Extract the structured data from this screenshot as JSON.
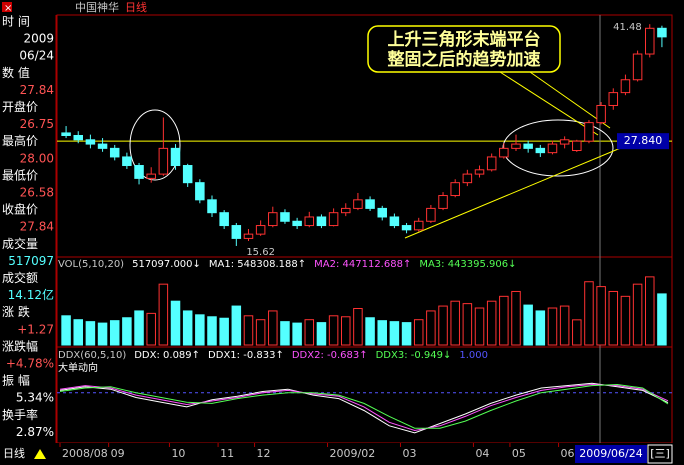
{
  "header": {
    "stock": "中国神华",
    "period": "日线"
  },
  "info_lines": [
    {
      "text": "时  间",
      "color": "#ffffff",
      "align": "start"
    },
    {
      "text": "2009",
      "color": "#ffffff",
      "align": "end"
    },
    {
      "text": "06/24",
      "color": "#ffffff",
      "align": "end"
    },
    {
      "text": "数  值",
      "color": "#ffffff",
      "align": "start"
    },
    {
      "text": "27.84",
      "color": "#ff5454",
      "align": "end"
    },
    {
      "text": "开盘价",
      "color": "#ffffff",
      "align": "start"
    },
    {
      "text": "26.75",
      "color": "#ff5454",
      "align": "end"
    },
    {
      "text": "最高价",
      "color": "#ffffff",
      "align": "start"
    },
    {
      "text": "28.00",
      "color": "#ff5454",
      "align": "end"
    },
    {
      "text": "最低价",
      "color": "#ffffff",
      "align": "start"
    },
    {
      "text": "26.58",
      "color": "#ff5454",
      "align": "end"
    },
    {
      "text": "收盘价",
      "color": "#ffffff",
      "align": "start"
    },
    {
      "text": "27.84",
      "color": "#ff5454",
      "align": "end"
    },
    {
      "text": "成交量",
      "color": "#ffffff",
      "align": "start"
    },
    {
      "text": "517097",
      "color": "#54ffff",
      "align": "end"
    },
    {
      "text": "成交额",
      "color": "#ffffff",
      "align": "start"
    },
    {
      "text": "14.12亿",
      "color": "#54ffff",
      "align": "end"
    },
    {
      "text": "涨  跌",
      "color": "#ffffff",
      "align": "start"
    },
    {
      "text": "+1.27",
      "color": "#ff5454",
      "align": "end"
    },
    {
      "text": "涨跌幅",
      "color": "#ffffff",
      "align": "start"
    },
    {
      "text": "+4.78%",
      "color": "#ff5454",
      "align": "end"
    },
    {
      "text": "振  幅",
      "color": "#ffffff",
      "align": "start"
    },
    {
      "text": "5.34%",
      "color": "#ffffff",
      "align": "end"
    },
    {
      "text": "换手率",
      "color": "#ffffff",
      "align": "start"
    },
    {
      "text": "2.87%",
      "color": "#ffffff",
      "align": "end"
    }
  ],
  "chart_data": {
    "type": "candlestick",
    "up_color": "#ff3232",
    "down_color": "#54ffff",
    "categories": [
      "2008/08",
      null,
      null,
      null,
      "09",
      null,
      null,
      null,
      null,
      "10",
      null,
      null,
      null,
      "11",
      null,
      null,
      "12",
      null,
      null,
      null,
      null,
      null,
      "2009/02",
      null,
      null,
      null,
      null,
      null,
      "03",
      null,
      null,
      null,
      null,
      null,
      "04",
      null,
      null,
      "05",
      null,
      null,
      null,
      "06",
      null,
      null,
      null,
      null,
      null,
      null,
      null,
      null
    ],
    "candles": [
      [
        28.8,
        29.6,
        28.2,
        28.5
      ],
      [
        28.5,
        29.0,
        27.6,
        28.0
      ],
      [
        28.0,
        28.6,
        27.0,
        27.5
      ],
      [
        27.5,
        28.2,
        26.6,
        27.0
      ],
      [
        27.0,
        27.4,
        25.6,
        26.0
      ],
      [
        26.0,
        26.5,
        24.6,
        25.0
      ],
      [
        25.0,
        25.3,
        22.8,
        23.5
      ],
      [
        23.5,
        24.8,
        23.0,
        24.0
      ],
      [
        24.0,
        30.6,
        23.8,
        27.0
      ],
      [
        27.0,
        27.5,
        24.5,
        25.0
      ],
      [
        25.0,
        25.2,
        22.5,
        23.0
      ],
      [
        23.0,
        23.4,
        20.6,
        21.0
      ],
      [
        21.0,
        21.5,
        19.0,
        19.5
      ],
      [
        19.5,
        19.8,
        17.6,
        18.0
      ],
      [
        18.0,
        18.3,
        15.62,
        16.5
      ],
      [
        16.5,
        17.6,
        16.2,
        17.0
      ],
      [
        17.0,
        18.6,
        16.8,
        18.0
      ],
      [
        18.0,
        20.2,
        17.8,
        19.5
      ],
      [
        19.5,
        19.9,
        18.2,
        18.5
      ],
      [
        18.5,
        18.9,
        17.6,
        18.0
      ],
      [
        18.0,
        19.6,
        17.8,
        19.0
      ],
      [
        19.0,
        19.3,
        17.7,
        18.0
      ],
      [
        18.0,
        20.0,
        17.9,
        19.5
      ],
      [
        19.5,
        20.6,
        19.1,
        20.0
      ],
      [
        20.0,
        21.8,
        19.8,
        21.0
      ],
      [
        21.0,
        21.4,
        19.7,
        20.0
      ],
      [
        20.0,
        20.3,
        18.6,
        19.0
      ],
      [
        19.0,
        19.4,
        17.7,
        18.0
      ],
      [
        18.0,
        18.3,
        17.1,
        17.5
      ],
      [
        17.5,
        18.9,
        17.3,
        18.5
      ],
      [
        18.5,
        20.4,
        18.3,
        20.0
      ],
      [
        20.0,
        21.9,
        19.8,
        21.5
      ],
      [
        21.5,
        23.4,
        21.3,
        23.0
      ],
      [
        23.0,
        24.5,
        22.6,
        24.0
      ],
      [
        24.0,
        25.0,
        23.6,
        24.5
      ],
      [
        24.5,
        26.4,
        24.3,
        26.0
      ],
      [
        26.0,
        27.6,
        25.8,
        27.0
      ],
      [
        27.0,
        28.6,
        26.7,
        27.5
      ],
      [
        27.5,
        27.9,
        26.5,
        27.0
      ],
      [
        27.0,
        27.4,
        26.0,
        26.5
      ],
      [
        26.5,
        27.9,
        26.3,
        27.5
      ],
      [
        27.5,
        28.4,
        27.0,
        28.0
      ],
      [
        26.75,
        28.0,
        26.58,
        27.84
      ],
      [
        27.84,
        30.3,
        27.6,
        30.0
      ],
      [
        30.0,
        32.4,
        29.8,
        32.0
      ],
      [
        32.0,
        34.0,
        31.5,
        33.5
      ],
      [
        33.5,
        35.6,
        33.2,
        35.0
      ],
      [
        35.0,
        38.4,
        34.8,
        38.0
      ],
      [
        38.0,
        41.48,
        37.6,
        41.0
      ],
      [
        41.0,
        41.3,
        38.8,
        40.0
      ]
    ],
    "ylim": [
      14.8,
      42.2
    ],
    "hline": {
      "value": 27.84,
      "label": "27.840"
    },
    "annotation": [
      "上升三角形末端平台",
      "整固之后的趋势加速"
    ],
    "low_index": 14,
    "high_index": 48,
    "volume": {
      "header": [
        {
          "text": "VOL(5,10,20)",
          "color": "#c8c8c8"
        },
        {
          "text": "517097.000↓",
          "color": "#ffffff"
        },
        {
          "text": "MA1: 548308.188↑",
          "color": "#ffffff"
        },
        {
          "text": "MA2: 447112.688↑",
          "color": "#ff54ff"
        },
        {
          "text": "MA3: 443395.906↓",
          "color": "#54ff54"
        }
      ],
      "values": [
        600000,
        520000,
        480000,
        450000,
        500000,
        560000,
        700000,
        650000,
        1250000,
        900000,
        700000,
        620000,
        580000,
        550000,
        800000,
        600000,
        520000,
        700000,
        480000,
        450000,
        520000,
        460000,
        600000,
        580000,
        750000,
        560000,
        500000,
        480000,
        460000,
        520000,
        700000,
        800000,
        900000,
        850000,
        760000,
        900000,
        1000000,
        1100000,
        820000,
        700000,
        760000,
        800000,
        517097,
        1300000,
        1200000,
        1100000,
        1000000,
        1250000,
        1400000,
        1050000
      ],
      "ylim": [
        0,
        1500000
      ]
    },
    "ddx": {
      "header": [
        {
          "text": "DDX(60,5,10)",
          "color": "#c8c8c8"
        },
        {
          "text": "DDX: 0.089↑",
          "color": "#ffffff"
        },
        {
          "text": "DDX1: -0.833↑",
          "color": "#ffffff"
        },
        {
          "text": "DDX2: -0.683↑",
          "color": "#ff54ff"
        },
        {
          "text": "DDX3: -0.949↓",
          "color": "#54ff54"
        },
        {
          "text": "1.000",
          "color": "#5454ff"
        }
      ],
      "subtitle": "大单动向",
      "ylim": [
        -4,
        1.5
      ],
      "series": [
        {
          "name": "DDX1",
          "color": "#ffffff",
          "values": [
            0.2,
            0.5,
            0.3,
            -0.4,
            -0.8,
            -1.2,
            -0.6,
            -0.3,
            0.1,
            0.3,
            -0.2,
            -0.5,
            -1.5,
            -2.8,
            -3.4,
            -2.6,
            -1.8,
            -0.9,
            -0.2,
            0.4,
            0.6,
            0.8,
            0.5,
            0.2,
            -0.833
          ]
        },
        {
          "name": "DDX2",
          "color": "#ff54ff",
          "values": [
            0.3,
            0.6,
            0.4,
            -0.2,
            -0.6,
            -1.0,
            -0.7,
            -0.4,
            0.0,
            0.2,
            -0.1,
            -0.3,
            -1.2,
            -2.5,
            -3.2,
            -2.8,
            -2.0,
            -1.1,
            -0.4,
            0.2,
            0.5,
            0.7,
            0.6,
            0.3,
            -0.683
          ]
        },
        {
          "name": "DDX3",
          "color": "#54ff54",
          "values": [
            0.1,
            0.4,
            0.5,
            0.0,
            -0.4,
            -0.8,
            -0.9,
            -0.5,
            -0.2,
            0.0,
            0.0,
            -0.2,
            -0.9,
            -2.0,
            -3.0,
            -3.0,
            -2.4,
            -1.5,
            -0.7,
            0.0,
            0.3,
            0.6,
            0.7,
            0.4,
            -0.949
          ]
        }
      ]
    },
    "date": "2009/06/24",
    "weekday": "[三]"
  }
}
